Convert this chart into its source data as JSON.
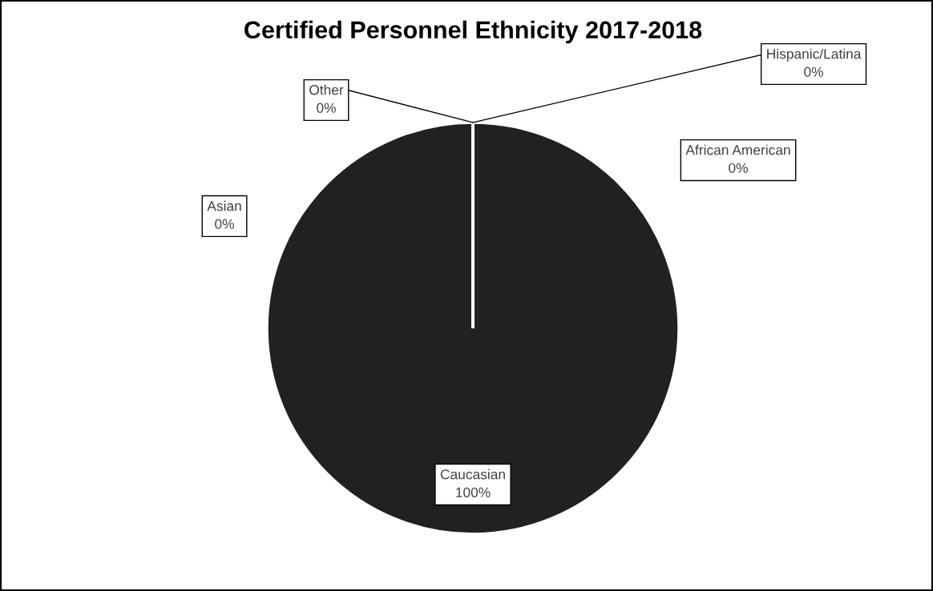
{
  "chart_data": {
    "type": "pie",
    "title": "Certified Personnel Ethnicity 2017-2018",
    "categories": [
      "Caucasian",
      "African American",
      "Hispanic/Latina",
      "Other",
      "Asian"
    ],
    "values": [
      100,
      0,
      0,
      0,
      0
    ],
    "colors": [
      "#212121",
      "#595959",
      "#7f7f7f",
      "#a5a5a5",
      "#bfbfbf"
    ],
    "value_labels": [
      "100%",
      "0%",
      "0%",
      "0%",
      "0%"
    ],
    "legend": false
  }
}
